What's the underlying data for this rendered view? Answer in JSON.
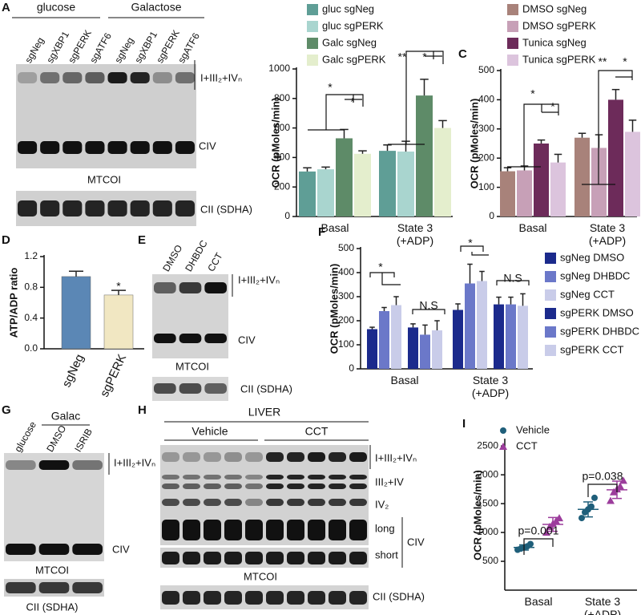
{
  "blots": [
    {
      "panel": "A",
      "groups": [
        "glucose",
        "Galactose"
      ],
      "lanes": [
        "sgNeg",
        "sgXBP1",
        "sgPERK",
        "sgATF6",
        "sgNeg",
        "sgXBP1",
        "sgPERK",
        "sgATF6"
      ],
      "bands": [
        "I+III₂+IVₙ",
        "CIV"
      ],
      "caption": "MTCOI",
      "loading": "CII (SDHA)"
    },
    {
      "panel": "E",
      "lanes": [
        "DMSO",
        "DHBDC",
        "CCT"
      ],
      "bands": [
        "I+III₂+IVₙ",
        "CIV"
      ],
      "caption": "MTCOI",
      "loading": "CII (SDHA)"
    },
    {
      "panel": "G",
      "groups": [
        "Galac"
      ],
      "lanes": [
        "glucose",
        "DMSO",
        "ISRIB"
      ],
      "bands": [
        "I+III₂+IVₙ",
        "CIV"
      ],
      "caption": "MTCOI",
      "loading": "CII (SDHA)"
    },
    {
      "panel": "H",
      "title": "LIVER",
      "groups": [
        "Vehicle",
        "CCT"
      ],
      "bands": [
        "I+III₂+IVₙ",
        "III₂+IV",
        "IV₂",
        "long",
        "short",
        "CIV"
      ],
      "caption": "MTCOI",
      "loading": "CII (SDHA)"
    }
  ],
  "chart_data": [
    {
      "type": "bar",
      "ylabel": "OCR (pMoles/min)",
      "categories": [
        "Basal",
        "State 3\n(+ADP)"
      ],
      "series": [
        {
          "name": "gluc sgNeg",
          "color": "#5f9e96",
          "values": [
            305,
            445
          ],
          "errors": [
            25,
            40
          ]
        },
        {
          "name": "gluc sgPERK",
          "color": "#a9d5cf",
          "values": [
            320,
            440
          ],
          "errors": [
            15,
            70
          ]
        },
        {
          "name": "Galc sgNeg",
          "color": "#5e8b68",
          "values": [
            530,
            820
          ],
          "errors": [
            60,
            110
          ]
        },
        {
          "name": "Galc sgPERK",
          "color": "#e4eecd",
          "values": [
            425,
            600
          ],
          "errors": [
            20,
            50
          ]
        }
      ],
      "ylim": [
        0,
        1000
      ],
      "yticks": [
        0,
        200,
        400,
        600,
        800,
        1000
      ],
      "annotations": [
        "*",
        "*",
        "**",
        "*"
      ]
    },
    {
      "type": "bar",
      "panel": "C",
      "ylabel": "OCR (pMoles/min)",
      "categories": [
        "Basal",
        "State 3\n(+ADP)"
      ],
      "series": [
        {
          "name": "DMSO sgNeg",
          "color": "#a8827a",
          "values": [
            155,
            270
          ],
          "errors": [
            12,
            15
          ]
        },
        {
          "name": "DMSO sgPERK",
          "color": "#c7a0b7",
          "values": [
            158,
            235
          ],
          "errors": [
            15,
            45
          ]
        },
        {
          "name": "Tunica  sgNeg",
          "color": "#6d2b5a",
          "values": [
            250,
            400
          ],
          "errors": [
            12,
            35
          ]
        },
        {
          "name": "Tunica sgPERK",
          "color": "#dcc4dd",
          "values": [
            185,
            290
          ],
          "errors": [
            28,
            40
          ]
        }
      ],
      "ylim": [
        0,
        500
      ],
      "yticks": [
        0,
        100,
        200,
        300,
        400,
        500
      ],
      "annotations": [
        "*",
        "*",
        "**",
        "*"
      ]
    },
    {
      "type": "bar",
      "panel": "D",
      "ylabel": "ATP/ADP ratio",
      "categories": [
        "sgNeg",
        "sgPERK"
      ],
      "values": [
        0.94,
        0.7
      ],
      "errors": [
        0.07,
        0.06
      ],
      "colors": [
        "#5b87b5",
        "#f1e7c2"
      ],
      "ylim": [
        0,
        1.2
      ],
      "yticks": [
        {
          "value": 0,
          "label": "0.0"
        },
        0.4,
        0.8,
        1.2
      ],
      "annotations": [
        "*"
      ]
    },
    {
      "type": "bar",
      "panel": "F",
      "ylabel": "OCR (pMoles/min)",
      "categories": [
        "Basal",
        "State 3\n(+ADP)"
      ],
      "series": [
        {
          "name": "sgNeg DMSO",
          "color": "#1b2a8c",
          "values": [
            165,
            245
          ],
          "errors": [
            8,
            25
          ]
        },
        {
          "name": "sgNeg DHBDC",
          "color": "#6b78c9",
          "values": [
            240,
            355
          ],
          "errors": [
            15,
            80
          ]
        },
        {
          "name": "sgNeg CCT",
          "color": "#c9cce9",
          "values": [
            265,
            365
          ],
          "errors": [
            35,
            40
          ]
        },
        {
          "name": "sgPERK DMSO",
          "color": "#1b2a8c",
          "values": [
            172,
            268
          ],
          "errors": [
            15,
            30
          ]
        },
        {
          "name": "sgPERK DHBDC",
          "color": "#6b78c9",
          "values": [
            142,
            268
          ],
          "errors": [
            40,
            30
          ]
        },
        {
          "name": "sgPERK CCT",
          "color": "#c9cce9",
          "values": [
            160,
            262
          ],
          "errors": [
            40,
            50
          ]
        }
      ],
      "ylim": [
        0,
        500
      ],
      "yticks": [
        0,
        100,
        200,
        300,
        400,
        500
      ],
      "annotations": [
        "*",
        "*",
        "N.S",
        "N.S"
      ]
    },
    {
      "type": "scatter",
      "panel": "I",
      "ylabel": "OCR (pMoles/min)",
      "categories": [
        "Basal",
        "State 3\n(+ADP)"
      ],
      "series": [
        {
          "name": "Vehicle",
          "color": "#1f5f7a",
          "marker": "circle",
          "values": [
            [
              700,
              720,
              740,
              760,
              800
            ],
            [
              1250,
              1350,
              1400,
              1450,
              1600
            ]
          ],
          "means": [
            740,
            1400
          ],
          "errors": [
            45,
            130
          ]
        },
        {
          "name": "CCT",
          "color": "#9c3d9c",
          "marker": "triangle",
          "values": [
            [
              1000,
              1100,
              1150,
              1200,
              1250
            ],
            [
              1550,
              1700,
              1750,
              1800,
              1900
            ]
          ],
          "means": [
            1140,
            1740
          ],
          "errors": [
            120,
            150
          ]
        }
      ],
      "ylim": [
        0,
        2600
      ],
      "yticks": [
        500,
        1000,
        1500,
        2000,
        2500
      ],
      "annotations": [
        "p=0.001",
        "p=0.038"
      ]
    }
  ]
}
